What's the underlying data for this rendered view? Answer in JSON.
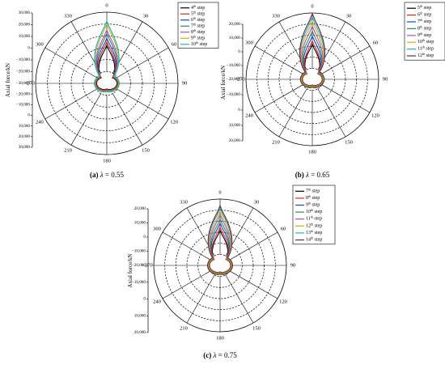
{
  "panels": [
    {
      "id": "a",
      "caption_label": "(a)",
      "caption_lambda": "λ",
      "caption_value": "= 0.55",
      "axis_title": "Axial force/kN",
      "angle_labels": [
        "0",
        "30",
        "60",
        "90",
        "120",
        "150",
        "180",
        "210",
        "240",
        "−270",
        "300",
        "330"
      ],
      "radial_ticks_top": [
        "30,000",
        "20,000",
        "10,000",
        "0",
        "−10,000",
        "−20,000",
        "−30,000"
      ],
      "radial_ticks_bottom": [
        "−20,000",
        "−10,000",
        "0",
        "10,000",
        "20,000",
        "30,000"
      ],
      "legend": [
        {
          "n": "4",
          "sup": "th",
          "t": " step"
        },
        {
          "n": "5",
          "sup": "th",
          "t": " step"
        },
        {
          "n": "6",
          "sup": "th",
          "t": " step"
        },
        {
          "n": "7",
          "sup": "th",
          "t": " step"
        },
        {
          "n": "8",
          "sup": "th",
          "t": " step"
        },
        {
          "n": "9",
          "sup": "th",
          "t": " step"
        },
        {
          "n": "10",
          "sup": "th",
          "t": " step"
        }
      ]
    },
    {
      "id": "b",
      "caption_label": "(b)",
      "caption_lambda": "λ",
      "caption_value": "= 0.65",
      "axis_title": "Axial force/kN",
      "angle_labels": [
        "0",
        "30",
        "60",
        "90",
        "120",
        "150",
        "180",
        "210",
        "240",
        "−270",
        "300",
        "330"
      ],
      "radial_ticks_top": [
        "20,000",
        "10,000",
        "0",
        "−10,000",
        "−20,000"
      ],
      "radial_ticks_bottom": [
        "−10,000",
        "0",
        "10,000",
        "20,000"
      ],
      "legend": [
        {
          "n": "5",
          "sup": "th",
          "t": " step"
        },
        {
          "n": "6",
          "sup": "th",
          "t": " step"
        },
        {
          "n": "7",
          "sup": "th",
          "t": " step"
        },
        {
          "n": "8",
          "sup": "th",
          "t": " step"
        },
        {
          "n": "9",
          "sup": "th",
          "t": " step"
        },
        {
          "n": "10",
          "sup": "th",
          "t": " step"
        },
        {
          "n": "11",
          "sup": "th",
          "t": " step"
        },
        {
          "n": "12",
          "sup": "th",
          "t": " step"
        }
      ]
    },
    {
      "id": "c",
      "caption_label": "(c)",
      "caption_lambda": "λ",
      "caption_value": "= 0.75",
      "axis_title": "Axial force/kN",
      "angle_labels": [
        "0",
        "30",
        "60",
        "90",
        "120",
        "150",
        "180",
        "210",
        "240",
        "−270",
        "300",
        "330"
      ],
      "radial_ticks_top": [
        "20,000",
        "10,000",
        "0",
        "−10,000",
        "−20,000"
      ],
      "radial_ticks_bottom": [
        "−10,000",
        "0",
        "10,000",
        "20,000"
      ],
      "legend": [
        {
          "n": "7",
          "sup": "th",
          "t": " step"
        },
        {
          "n": "8",
          "sup": "th",
          "t": " step"
        },
        {
          "n": "9",
          "sup": "th",
          "t": " step"
        },
        {
          "n": "10",
          "sup": "th",
          "t": " step"
        },
        {
          "n": "11",
          "sup": "th",
          "t": " step"
        },
        {
          "n": "12",
          "sup": "th",
          "t": " step"
        },
        {
          "n": "13",
          "sup": "th",
          "t": " step"
        },
        {
          "n": "14",
          "sup": "th",
          "t": " step"
        }
      ]
    }
  ],
  "colors": [
    "#000000",
    "#d62728",
    "#1f3fbf",
    "#2e8b57",
    "#b04ad0",
    "#c8b400",
    "#17b3c4",
    "#7a1f3d"
  ],
  "chart_data": [
    {
      "type": "polar-line",
      "angle_unit": "degrees",
      "r_range": [
        -30000,
        30000
      ],
      "ylabel": "Axial force/kN",
      "series": [
        {
          "name": "4th step",
          "peak": 2000,
          "trough": -27500
        },
        {
          "name": "5th step",
          "peak": 5000,
          "trough": -27000
        },
        {
          "name": "6th step",
          "peak": 8000,
          "trough": -26000
        },
        {
          "name": "7th step",
          "peak": 12000,
          "trough": -26000
        },
        {
          "name": "8th step",
          "peak": 15000,
          "trough": -25500
        },
        {
          "name": "9th step",
          "peak": 20000,
          "trough": -25500
        },
        {
          "name": "10th step",
          "peak": 22500,
          "trough": -25000
        }
      ]
    },
    {
      "type": "polar-line",
      "angle_unit": "degrees",
      "r_range": [
        -20000,
        20000
      ],
      "ylabel": "Axial force/kN",
      "series": [
        {
          "name": "5th step",
          "peak": 1000,
          "trough": -18000
        },
        {
          "name": "6th step",
          "peak": 3000,
          "trough": -18000
        },
        {
          "name": "7th step",
          "peak": 6000,
          "trough": -17500
        },
        {
          "name": "8th step",
          "peak": 9000,
          "trough": -17500
        },
        {
          "name": "9th step",
          "peak": 12000,
          "trough": -17000
        },
        {
          "name": "10th step",
          "peak": 15000,
          "trough": -17000
        },
        {
          "name": "11th step",
          "peak": 17500,
          "trough": -16500
        },
        {
          "name": "12th step",
          "peak": 19500,
          "trough": -16500
        }
      ]
    },
    {
      "type": "polar-line",
      "angle_unit": "degrees",
      "r_range": [
        -20000,
        20000
      ],
      "ylabel": "Axial force/kN",
      "series": [
        {
          "name": "7th step",
          "peak": 1000,
          "trough": -17500
        },
        {
          "name": "8th step",
          "peak": 3000,
          "trough": -17500
        },
        {
          "name": "9th step",
          "peak": 5500,
          "trough": -17000
        },
        {
          "name": "10th step",
          "peak": 8000,
          "trough": -17000
        },
        {
          "name": "11th step",
          "peak": 10500,
          "trough": -16500
        },
        {
          "name": "12th step",
          "peak": 12500,
          "trough": -16500
        },
        {
          "name": "13th step",
          "peak": 14500,
          "trough": -16000
        },
        {
          "name": "14th step",
          "peak": 16000,
          "trough": -16000
        }
      ]
    }
  ]
}
